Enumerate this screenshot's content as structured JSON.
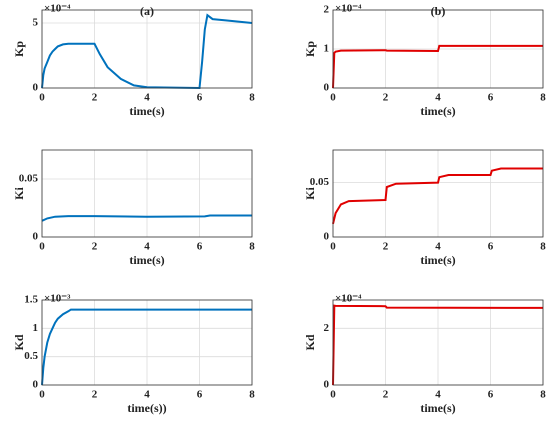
{
  "chart_data": [
    {
      "type": "line",
      "title": "(a)",
      "xlabel": "time(s)",
      "ylabel": "Kp",
      "y_scale_label": "×10⁻⁴",
      "xlim": [
        0,
        8
      ],
      "xticks": [
        0,
        2,
        4,
        6,
        8
      ],
      "ylim": [
        0,
        6
      ],
      "yticks": [
        0,
        5
      ],
      "grid": true,
      "series": [
        {
          "color": "#0072bd",
          "x": [
            0,
            0.05,
            0.1,
            0.2,
            0.3,
            0.4,
            0.5,
            0.6,
            0.8,
            1.0,
            2.0,
            2.2,
            2.5,
            3,
            3.5,
            4,
            6,
            6.1,
            6.2,
            6.3,
            6.5,
            7,
            8
          ],
          "values": [
            0,
            1.0,
            1.5,
            2.0,
            2.5,
            2.8,
            3.0,
            3.2,
            3.35,
            3.4,
            3.4,
            2.6,
            1.6,
            0.7,
            0.2,
            0.05,
            0,
            2,
            4.5,
            5.6,
            5.3,
            5.2,
            5.0
          ]
        }
      ]
    },
    {
      "type": "line",
      "title": "(b)",
      "xlabel": "time(s)",
      "ylabel": "Kp",
      "y_scale_label": "×10⁻⁴",
      "xlim": [
        0,
        8
      ],
      "xticks": [
        0,
        2,
        4,
        6,
        8
      ],
      "ylim": [
        0,
        2
      ],
      "yticks": [
        0,
        1,
        2
      ],
      "grid": true,
      "series": [
        {
          "color": "#e00000",
          "x": [
            0,
            0.05,
            0.1,
            0.3,
            2.0,
            2.05,
            4.0,
            4.05,
            8
          ],
          "values": [
            0,
            0.9,
            0.93,
            0.96,
            0.97,
            0.96,
            0.95,
            1.08,
            1.08
          ]
        }
      ]
    },
    {
      "type": "line",
      "xlabel": "time(s)",
      "ylabel": "Ki",
      "xlim": [
        0,
        8
      ],
      "xticks": [
        0,
        2,
        4,
        6,
        8
      ],
      "ylim": [
        0,
        0.075
      ],
      "yticks": [
        0,
        0.05
      ],
      "grid": true,
      "series": [
        {
          "color": "#0072bd",
          "x": [
            0,
            0.2,
            0.5,
            1.0,
            2.0,
            4.0,
            6.2,
            6.4,
            8
          ],
          "values": [
            0.014,
            0.016,
            0.0175,
            0.018,
            0.018,
            0.0175,
            0.0178,
            0.0185,
            0.0185
          ]
        }
      ]
    },
    {
      "type": "line",
      "xlabel": "time(s)",
      "ylabel": "Ki",
      "xlim": [
        0,
        8
      ],
      "xticks": [
        0,
        2,
        4,
        6,
        8
      ],
      "ylim": [
        0,
        0.08
      ],
      "yticks": [
        0,
        0.05
      ],
      "grid": true,
      "series": [
        {
          "color": "#e00000",
          "x": [
            0,
            0.1,
            0.3,
            0.6,
            2.0,
            2.05,
            2.4,
            4.0,
            4.05,
            4.4,
            6.0,
            6.05,
            6.4,
            8
          ],
          "values": [
            0.012,
            0.022,
            0.03,
            0.033,
            0.034,
            0.046,
            0.049,
            0.05,
            0.055,
            0.057,
            0.057,
            0.061,
            0.063,
            0.063
          ]
        }
      ]
    },
    {
      "type": "line",
      "xlabel": "time(s))",
      "ylabel": "Kd",
      "y_scale_label": "×10⁻³",
      "xlim": [
        0,
        8
      ],
      "xticks": [
        0,
        2,
        4,
        6,
        8
      ],
      "ylim": [
        0,
        1.5
      ],
      "yticks": [
        0,
        0.5,
        1,
        1.5
      ],
      "grid": true,
      "series": [
        {
          "color": "#0072bd",
          "x": [
            0,
            0.05,
            0.1,
            0.2,
            0.3,
            0.4,
            0.5,
            0.6,
            0.8,
            1.0,
            1.1,
            8
          ],
          "values": [
            0,
            0.3,
            0.5,
            0.75,
            0.9,
            1.0,
            1.1,
            1.17,
            1.25,
            1.3,
            1.33,
            1.33
          ]
        }
      ]
    },
    {
      "type": "line",
      "xlabel": "time(s)",
      "ylabel": "Kd",
      "y_scale_label": "×10⁻⁴",
      "xlim": [
        0,
        8
      ],
      "xticks": [
        0,
        2,
        4,
        6,
        8
      ],
      "ylim": [
        0,
        3
      ],
      "yticks": [
        0,
        2
      ],
      "grid": true,
      "series": [
        {
          "color": "#e00000",
          "x": [
            0,
            0.05,
            0.1,
            2.0,
            2.05,
            8
          ],
          "values": [
            0,
            2.8,
            2.79,
            2.78,
            2.73,
            2.72
          ]
        }
      ]
    }
  ]
}
